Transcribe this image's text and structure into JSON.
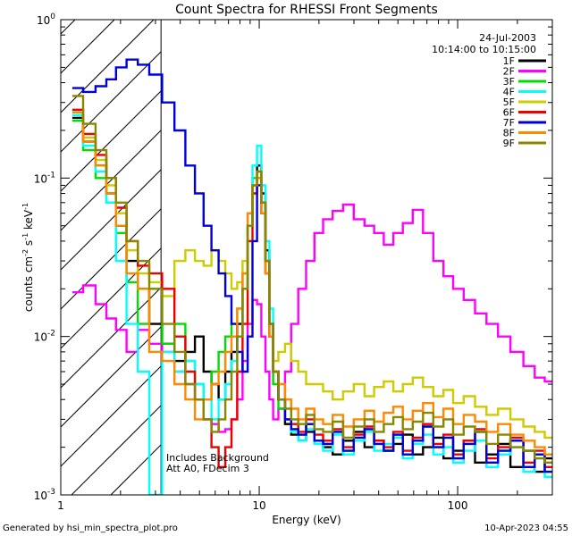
{
  "footer": {
    "generated_by": "Generated by hsi_min_spectra_plot.pro",
    "timestamp": "10-Apr-2023 04:55"
  },
  "chart_data": {
    "type": "line",
    "title": "Count Spectra for RHESSI Front Segments",
    "xlabel": "Energy (keV)",
    "ylabel_parts": {
      "base": "counts cm",
      "exp1": "-2",
      "mid": " s",
      "exp2": "-1",
      "end": " keV",
      "exp3": "-1"
    },
    "xscale": "log",
    "yscale": "log",
    "xlim": [
      1,
      300
    ],
    "ylim": [
      0.001,
      1
    ],
    "x_tick_labels": [
      {
        "value": 1,
        "label": "1"
      },
      {
        "value": 10,
        "label": "10"
      },
      {
        "value": 100,
        "label": "100"
      }
    ],
    "y_tick_labels": [
      {
        "value": 1,
        "base": "10",
        "exp": "0"
      },
      {
        "value": 0.1,
        "base": "10",
        "exp": "-1"
      },
      {
        "value": 0.01,
        "base": "10",
        "exp": "-2"
      },
      {
        "value": 0.001,
        "base": "10",
        "exp": "-3"
      }
    ],
    "legend": {
      "position": "top-right",
      "date": "24-Jul-2003",
      "time_range": "10:14:00 to 10:15:00"
    },
    "hatched_region_xmax": 3.2,
    "annotations": [
      "Includes Background",
      "Att A0, FDecim 3"
    ],
    "series": [
      {
        "name": "1F",
        "color": "#000000",
        "x": [
          1.2,
          1.4,
          1.6,
          1.8,
          2.0,
          2.3,
          2.6,
          3.0,
          3.5,
          4.0,
          4.5,
          5.0,
          5.5,
          6.0,
          6.5,
          7.0,
          7.5,
          8.0,
          8.5,
          9.0,
          9.5,
          10.0,
          10.5,
          11.0,
          11.5,
          12.0,
          13.0,
          14.0,
          15.0,
          16.5,
          18.0,
          20.0,
          22.0,
          25.0,
          28.0,
          32.0,
          36.0,
          40.0,
          45.0,
          50.0,
          56.0,
          63.0,
          71.0,
          80.0,
          90.0,
          100.0,
          115.0,
          130.0,
          150.0,
          170.0,
          200.0,
          230.0,
          260.0,
          290.0
        ],
        "values": [
          0.24,
          0.17,
          0.12,
          0.08,
          0.05,
          0.03,
          0.02,
          0.012,
          0.009,
          0.007,
          0.008,
          0.01,
          0.006,
          0.005,
          0.004,
          0.006,
          0.008,
          0.012,
          0.02,
          0.05,
          0.09,
          0.12,
          0.08,
          0.035,
          0.012,
          0.006,
          0.004,
          0.0028,
          0.0024,
          0.0022,
          0.0025,
          0.0022,
          0.002,
          0.0018,
          0.0022,
          0.0025,
          0.002,
          0.0022,
          0.0019,
          0.0021,
          0.0024,
          0.0018,
          0.002,
          0.0023,
          0.0017,
          0.0019,
          0.0022,
          0.0016,
          0.0018,
          0.0021,
          0.0015,
          0.0019,
          0.0014,
          0.0017
        ]
      },
      {
        "name": "2F",
        "color": "#ff00ff",
        "x": [
          1.2,
          1.4,
          1.6,
          1.8,
          2.0,
          2.3,
          2.6,
          3.0,
          3.5,
          4.0,
          4.5,
          5.0,
          5.5,
          6.0,
          6.5,
          7.0,
          7.5,
          8.0,
          8.5,
          9.0,
          9.5,
          10.0,
          10.5,
          11.0,
          11.5,
          12.0,
          13.0,
          14.0,
          15.0,
          16.5,
          18.0,
          20.0,
          22.0,
          25.0,
          28.0,
          32.0,
          36.0,
          40.0,
          45.0,
          50.0,
          56.0,
          63.0,
          71.0,
          80.0,
          90.0,
          100.0,
          115.0,
          130.0,
          150.0,
          170.0,
          200.0,
          230.0,
          260.0,
          290.0
        ],
        "values": [
          0.019,
          0.021,
          0.016,
          0.013,
          0.011,
          0.008,
          0.011,
          0.009,
          0.008,
          0.006,
          0.005,
          0.004,
          0.003,
          0.0028,
          0.0025,
          0.0026,
          0.003,
          0.004,
          0.007,
          0.012,
          0.017,
          0.016,
          0.01,
          0.006,
          0.004,
          0.003,
          0.0035,
          0.006,
          0.012,
          0.02,
          0.03,
          0.045,
          0.055,
          0.062,
          0.068,
          0.055,
          0.05,
          0.045,
          0.038,
          0.045,
          0.052,
          0.063,
          0.045,
          0.03,
          0.024,
          0.02,
          0.017,
          0.014,
          0.012,
          0.01,
          0.008,
          0.0065,
          0.0055,
          0.0052
        ]
      },
      {
        "name": "3F",
        "color": "#00dd00",
        "x": [
          1.2,
          1.4,
          1.6,
          1.8,
          2.0,
          2.3,
          2.6,
          3.0,
          3.5,
          4.0,
          4.5,
          5.0,
          5.5,
          6.0,
          6.5,
          7.0,
          7.5,
          8.0,
          8.5,
          9.0,
          9.5,
          10.0,
          10.5,
          11.0,
          11.5,
          12.0,
          13.0,
          14.0,
          15.0,
          16.5,
          18.0,
          20.0,
          22.0,
          25.0,
          28.0,
          32.0,
          36.0,
          40.0,
          45.0,
          50.0,
          56.0,
          63.0,
          71.0,
          80.0,
          90.0,
          100.0,
          115.0,
          130.0,
          150.0,
          170.0,
          200.0,
          230.0,
          260.0,
          290.0
        ],
        "values": [
          0.23,
          0.15,
          0.1,
          0.07,
          0.045,
          0.022,
          0.012,
          0.02,
          0.009,
          0.012,
          0.007,
          0.005,
          0.004,
          0.006,
          0.008,
          0.01,
          0.012,
          0.015,
          0.025,
          0.06,
          0.1,
          0.11,
          0.06,
          0.025,
          0.01,
          0.005,
          0.0035,
          0.003,
          0.0026,
          0.0024,
          0.0028,
          0.0022,
          0.0021,
          0.0025,
          0.0019,
          0.0023,
          0.0026,
          0.0021,
          0.0019,
          0.0024,
          0.0018,
          0.0022,
          0.0027,
          0.002,
          0.0023,
          0.0017,
          0.0021,
          0.0025,
          0.0016,
          0.0019,
          0.0022,
          0.0015,
          0.0018,
          0.0014
        ]
      },
      {
        "name": "4F",
        "color": "#00ffff",
        "x": [
          1.2,
          1.4,
          1.6,
          1.8,
          2.0,
          2.3,
          2.6,
          3.0,
          3.5,
          4.0,
          4.5,
          5.0,
          5.5,
          6.0,
          6.5,
          7.0,
          7.5,
          8.0,
          8.5,
          9.0,
          9.5,
          10.0,
          10.5,
          11.0,
          11.5,
          12.0,
          13.0,
          14.0,
          15.0,
          16.5,
          18.0,
          20.0,
          22.0,
          25.0,
          28.0,
          32.0,
          36.0,
          40.0,
          45.0,
          50.0,
          56.0,
          63.0,
          71.0,
          80.0,
          90.0,
          100.0,
          115.0,
          130.0,
          150.0,
          170.0,
          200.0,
          230.0,
          260.0,
          290.0
        ],
        "values": [
          0.25,
          0.16,
          0.11,
          0.07,
          0.03,
          0.012,
          0.006,
          0.001,
          0.008,
          0.006,
          0.007,
          0.005,
          0.004,
          0.003,
          0.004,
          0.005,
          0.007,
          0.01,
          0.02,
          0.06,
          0.12,
          0.16,
          0.09,
          0.04,
          0.015,
          0.006,
          0.004,
          0.003,
          0.0025,
          0.0022,
          0.0026,
          0.0021,
          0.0019,
          0.0024,
          0.0018,
          0.0022,
          0.0025,
          0.0019,
          0.0021,
          0.0023,
          0.0017,
          0.0021,
          0.0024,
          0.0018,
          0.002,
          0.0016,
          0.0019,
          0.0022,
          0.0015,
          0.0018,
          0.002,
          0.0014,
          0.0017,
          0.0013
        ]
      },
      {
        "name": "5F",
        "color": "#cccc00",
        "x": [
          1.2,
          1.4,
          1.6,
          1.8,
          2.0,
          2.3,
          2.6,
          3.0,
          3.5,
          4.0,
          4.5,
          5.0,
          5.5,
          6.0,
          6.5,
          7.0,
          7.5,
          8.0,
          8.5,
          9.0,
          9.5,
          10.0,
          10.5,
          11.0,
          11.5,
          12.0,
          13.0,
          14.0,
          15.0,
          16.5,
          18.0,
          20.0,
          22.0,
          25.0,
          28.0,
          32.0,
          36.0,
          40.0,
          45.0,
          50.0,
          56.0,
          63.0,
          71.0,
          80.0,
          90.0,
          100.0,
          115.0,
          130.0,
          150.0,
          170.0,
          200.0,
          230.0,
          260.0,
          290.0
        ],
        "values": [
          0.26,
          0.18,
          0.13,
          0.09,
          0.06,
          0.035,
          0.025,
          0.022,
          0.018,
          0.03,
          0.035,
          0.03,
          0.028,
          0.035,
          0.03,
          0.025,
          0.02,
          0.022,
          0.03,
          0.05,
          0.08,
          0.1,
          0.07,
          0.03,
          0.012,
          0.007,
          0.008,
          0.009,
          0.007,
          0.006,
          0.005,
          0.005,
          0.0045,
          0.004,
          0.0045,
          0.005,
          0.0042,
          0.0048,
          0.0052,
          0.0045,
          0.005,
          0.0055,
          0.0048,
          0.0042,
          0.0046,
          0.0038,
          0.0042,
          0.0036,
          0.0032,
          0.0035,
          0.003,
          0.0027,
          0.0025,
          0.0023
        ]
      },
      {
        "name": "6F",
        "color": "#ee0000",
        "x": [
          1.2,
          1.4,
          1.6,
          1.8,
          2.0,
          2.3,
          2.6,
          3.0,
          3.5,
          4.0,
          4.5,
          5.0,
          5.5,
          6.0,
          6.5,
          7.0,
          7.5,
          8.0,
          8.5,
          9.0,
          9.5,
          10.0,
          10.5,
          11.0,
          11.5,
          12.0,
          13.0,
          14.0,
          15.0,
          16.5,
          18.0,
          20.0,
          22.0,
          25.0,
          28.0,
          32.0,
          36.0,
          40.0,
          45.0,
          50.0,
          56.0,
          63.0,
          71.0,
          80.0,
          90.0,
          100.0,
          115.0,
          130.0,
          150.0,
          170.0,
          200.0,
          230.0,
          260.0,
          290.0
        ],
        "values": [
          0.27,
          0.19,
          0.14,
          0.1,
          0.065,
          0.04,
          0.028,
          0.025,
          0.02,
          0.01,
          0.006,
          0.004,
          0.003,
          0.002,
          0.0015,
          0.002,
          0.003,
          0.006,
          0.012,
          0.04,
          0.08,
          0.1,
          0.06,
          0.025,
          0.01,
          0.006,
          0.004,
          0.003,
          0.0028,
          0.0025,
          0.003,
          0.0024,
          0.0022,
          0.0026,
          0.002,
          0.0024,
          0.0027,
          0.0022,
          0.002,
          0.0025,
          0.0019,
          0.0023,
          0.0028,
          0.0021,
          0.0024,
          0.0018,
          0.0022,
          0.0026,
          0.0017,
          0.002,
          0.0023,
          0.0016,
          0.0019,
          0.0015
        ]
      },
      {
        "name": "7F",
        "color": "#0000dd",
        "x": [
          1.2,
          1.4,
          1.6,
          1.8,
          2.0,
          2.3,
          2.6,
          3.0,
          3.5,
          4.0,
          4.5,
          5.0,
          5.5,
          6.0,
          6.5,
          7.0,
          7.5,
          8.0,
          8.5,
          9.0,
          9.5,
          10.0,
          10.5,
          11.0,
          11.5,
          12.0,
          13.0,
          14.0,
          15.0,
          16.5,
          18.0,
          20.0,
          22.0,
          25.0,
          28.0,
          32.0,
          36.0,
          40.0,
          45.0,
          50.0,
          56.0,
          63.0,
          71.0,
          80.0,
          90.0,
          100.0,
          115.0,
          130.0,
          150.0,
          170.0,
          200.0,
          230.0,
          260.0,
          290.0
        ],
        "values": [
          0.37,
          0.35,
          0.38,
          0.42,
          0.5,
          0.56,
          0.52,
          0.45,
          0.3,
          0.2,
          0.12,
          0.08,
          0.05,
          0.035,
          0.025,
          0.018,
          0.012,
          0.008,
          0.006,
          0.01,
          0.04,
          0.09,
          0.07,
          0.03,
          0.012,
          0.006,
          0.004,
          0.003,
          0.0026,
          0.0024,
          0.0028,
          0.0022,
          0.0021,
          0.0025,
          0.0019,
          0.0023,
          0.0026,
          0.0021,
          0.0019,
          0.0024,
          0.0018,
          0.0022,
          0.0027,
          0.002,
          0.0023,
          0.0017,
          0.0021,
          0.0025,
          0.0016,
          0.0019,
          0.0022,
          0.0015,
          0.0018,
          0.0014
        ]
      },
      {
        "name": "8F",
        "color": "#ff8800",
        "x": [
          1.2,
          1.4,
          1.6,
          1.8,
          2.0,
          2.3,
          2.6,
          3.0,
          3.5,
          4.0,
          4.5,
          5.0,
          5.5,
          6.0,
          6.5,
          7.0,
          7.5,
          8.0,
          8.5,
          9.0,
          9.5,
          10.0,
          10.5,
          11.0,
          11.5,
          12.0,
          13.0,
          14.0,
          15.0,
          16.5,
          18.0,
          20.0,
          22.0,
          25.0,
          28.0,
          32.0,
          36.0,
          40.0,
          45.0,
          50.0,
          56.0,
          63.0,
          71.0,
          80.0,
          90.0,
          100.0,
          115.0,
          130.0,
          150.0,
          170.0,
          200.0,
          230.0,
          260.0,
          290.0
        ],
        "values": [
          0.26,
          0.17,
          0.12,
          0.08,
          0.05,
          0.025,
          0.02,
          0.008,
          0.007,
          0.005,
          0.004,
          0.003,
          0.004,
          0.005,
          0.006,
          0.008,
          0.01,
          0.015,
          0.025,
          0.06,
          0.09,
          0.1,
          0.06,
          0.025,
          0.01,
          0.006,
          0.005,
          0.004,
          0.0035,
          0.003,
          0.0035,
          0.003,
          0.0028,
          0.0032,
          0.0027,
          0.003,
          0.0034,
          0.0029,
          0.0033,
          0.0036,
          0.003,
          0.0034,
          0.0038,
          0.0031,
          0.0035,
          0.0028,
          0.0032,
          0.0029,
          0.0025,
          0.0028,
          0.0024,
          0.0022,
          0.002,
          0.0018
        ]
      },
      {
        "name": "9F",
        "color": "#888800",
        "x": [
          1.2,
          1.4,
          1.6,
          1.8,
          2.0,
          2.3,
          2.6,
          3.0,
          3.5,
          4.0,
          4.5,
          5.0,
          5.5,
          6.0,
          6.5,
          7.0,
          7.5,
          8.0,
          8.5,
          9.0,
          9.5,
          10.0,
          10.5,
          11.0,
          11.5,
          12.0,
          13.0,
          14.0,
          15.0,
          16.5,
          18.0,
          20.0,
          22.0,
          25.0,
          28.0,
          32.0,
          36.0,
          40.0,
          45.0,
          50.0,
          56.0,
          63.0,
          71.0,
          80.0,
          90.0,
          100.0,
          115.0,
          130.0,
          150.0,
          170.0,
          200.0,
          230.0,
          260.0,
          290.0
        ],
        "values": [
          0.33,
          0.22,
          0.15,
          0.1,
          0.07,
          0.04,
          0.03,
          0.02,
          0.012,
          0.008,
          0.005,
          0.004,
          0.003,
          0.0025,
          0.003,
          0.004,
          0.006,
          0.01,
          0.02,
          0.05,
          0.09,
          0.11,
          0.07,
          0.03,
          0.012,
          0.006,
          0.004,
          0.0035,
          0.003,
          0.0028,
          0.0032,
          0.0026,
          0.0025,
          0.0029,
          0.0023,
          0.0027,
          0.003,
          0.0025,
          0.0028,
          0.0031,
          0.0026,
          0.0029,
          0.0033,
          0.0027,
          0.003,
          0.0024,
          0.0027,
          0.0025,
          0.0021,
          0.0024,
          0.002,
          0.0019,
          0.0017,
          0.0016
        ]
      }
    ]
  }
}
